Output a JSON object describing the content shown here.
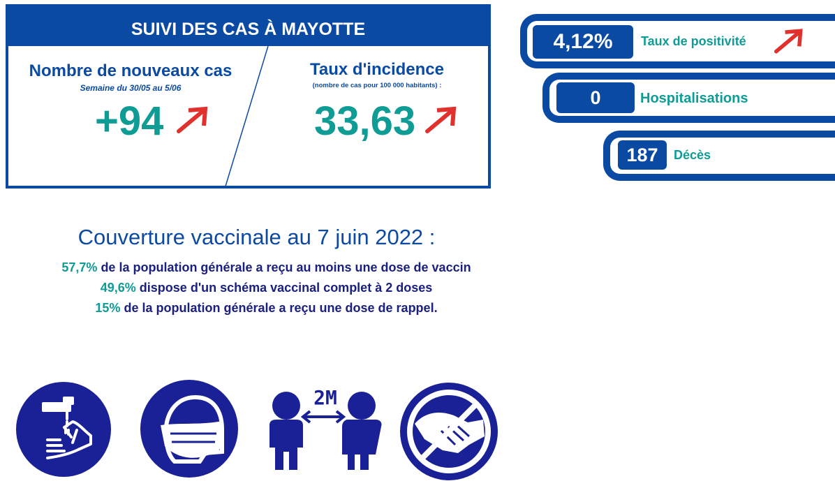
{
  "header": {
    "title": "SUIVI DES CAS À MAYOTTE"
  },
  "new_cases": {
    "title": "Nombre de nouveaux cas",
    "subtitle": "Semaine du 30/05 au 5/06",
    "value": "+94",
    "trend": "up"
  },
  "incidence": {
    "title": "Taux d'incidence",
    "subtitle": "(nombre de cas pour 100 000 habitants) :",
    "value": "33,63",
    "trend": "up"
  },
  "indicators": [
    {
      "value": "4,12%",
      "label": "Taux de positivité",
      "trend": "up"
    },
    {
      "value": "0",
      "label": "Hospitalisations"
    },
    {
      "value": "187",
      "label": "Décès"
    }
  ],
  "vaccination": {
    "title": "Couverture vaccinale au 7 juin 2022 :",
    "lines": [
      {
        "pct": "57,7%",
        "text": " de la population générale a reçu au moins une dose de vaccin"
      },
      {
        "pct": "49,6%",
        "text": " dispose d'un schéma vaccinal complet à 2 doses"
      },
      {
        "pct": "15%",
        "text": " de la population générale a reçu une dose de rappel."
      }
    ]
  },
  "gestures": {
    "distance_label": "2M",
    "icons": [
      "hand-washing-icon",
      "face-mask-icon",
      "social-distance-icon",
      "no-handshake-icon"
    ]
  },
  "colors": {
    "primary": "#0b4aa2",
    "teal": "#0e9c95",
    "arrow": "#e0312c",
    "navy": "#1a2080"
  }
}
